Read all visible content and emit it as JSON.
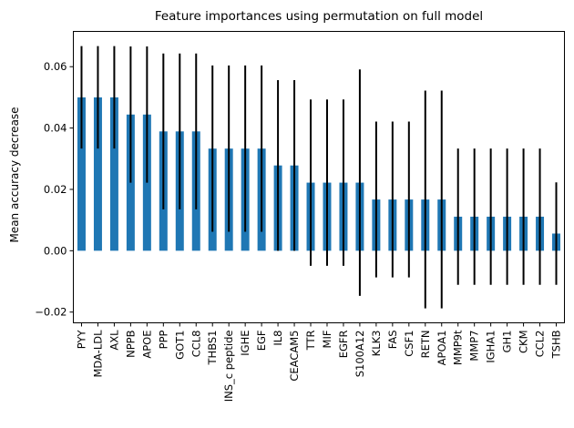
{
  "chart_data": {
    "type": "bar",
    "title": "Feature importances using permutation on full model",
    "xlabel": "",
    "ylabel": "Mean accuracy decrease",
    "ylim": [
      -0.0235,
      0.0715
    ],
    "yticks": [
      -0.02,
      0.0,
      0.02,
      0.04,
      0.06
    ],
    "ytick_labels": [
      "−0.02",
      "0.00",
      "0.02",
      "0.04",
      "0.06"
    ],
    "grid": false,
    "bar_color": "#1f77b4",
    "error_color": "#000000",
    "categories": [
      "PYY",
      "MDA-LDL",
      "AXL",
      "NPPB",
      "APOE",
      "PPP",
      "GOT1",
      "CCL8",
      "THBS1",
      "INS_c peptide",
      "IGHE",
      "EGF",
      "IL8",
      "CEACAM5",
      "TTR",
      "MIF",
      "EGFR",
      "S100A12",
      "KLK3",
      "FAS",
      "CSF1",
      "RETN",
      "APOA1",
      "MMP9t",
      "MMP7",
      "IGHA1",
      "GH1",
      "CKM",
      "CCL2",
      "TSHB"
    ],
    "values": [
      0.05,
      0.05,
      0.05,
      0.0444,
      0.0444,
      0.0389,
      0.0389,
      0.0389,
      0.0333,
      0.0333,
      0.0333,
      0.0333,
      0.0278,
      0.0278,
      0.0222,
      0.0222,
      0.0222,
      0.0222,
      0.0167,
      0.0167,
      0.0167,
      0.0167,
      0.0167,
      0.0111,
      0.0111,
      0.0111,
      0.0111,
      0.0111,
      0.0111,
      0.0056
    ],
    "errors": [
      0.0167,
      0.0167,
      0.0167,
      0.0222,
      0.0222,
      0.0254,
      0.0254,
      0.0254,
      0.0271,
      0.0271,
      0.0271,
      0.0271,
      0.0278,
      0.0278,
      0.0271,
      0.0271,
      0.0271,
      0.0369,
      0.0254,
      0.0254,
      0.0254,
      0.0355,
      0.0355,
      0.0222,
      0.0222,
      0.0222,
      0.0222,
      0.0222,
      0.0222,
      0.0167
    ]
  }
}
